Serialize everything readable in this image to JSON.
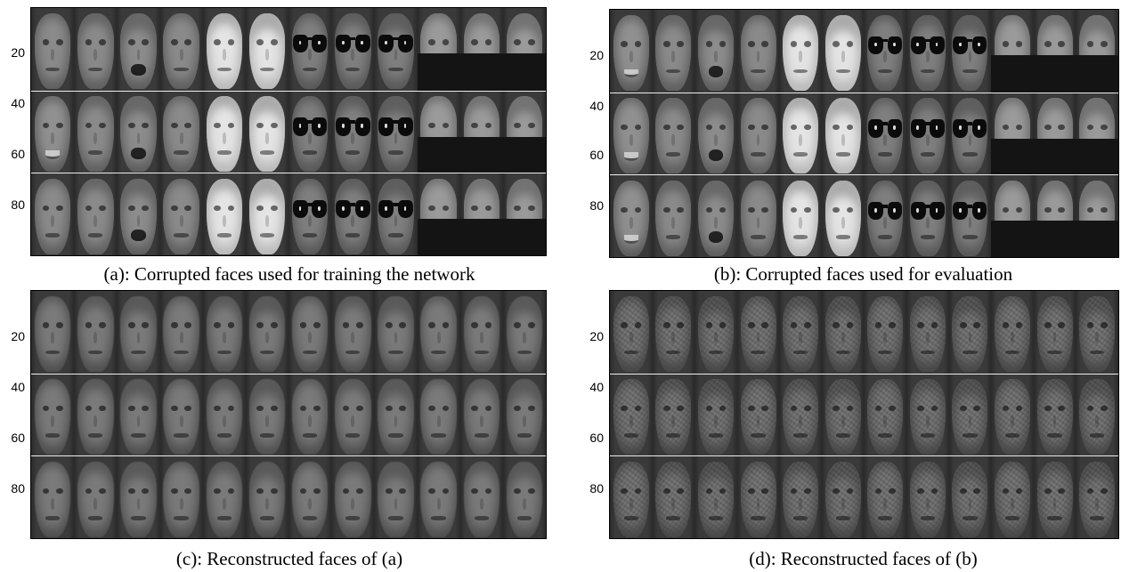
{
  "panels": [
    {
      "id": "a",
      "caption": "(a): Corrupted faces used for training the network",
      "yticks": [
        "20",
        "40",
        "60",
        "80"
      ],
      "rows": [
        {
          "faces": [
            "neutral",
            "neutral",
            "scream",
            "neutral",
            "bright",
            "bright",
            "sunglasses",
            "sunglasses",
            "sunglasses",
            "scarfed",
            "scarfed",
            "scarfed"
          ]
        },
        {
          "faces": [
            "smile",
            "neutral",
            "scream",
            "neutral",
            "bright",
            "bright",
            "sunglasses",
            "sunglasses",
            "sunglasses",
            "scarfed",
            "scarfed",
            "scarfed"
          ]
        },
        {
          "faces": [
            "neutral",
            "neutral",
            "scream",
            "neutral",
            "bright",
            "bright",
            "sunglasses",
            "sunglasses",
            "sunglasses",
            "scarfed",
            "scarfed",
            "scarfed"
          ]
        }
      ]
    },
    {
      "id": "b",
      "caption": "(b): Corrupted faces used for evaluation",
      "yticks": [
        "20",
        "40",
        "60",
        "80"
      ],
      "rows": [
        {
          "faces": [
            "smile",
            "neutral",
            "scream",
            "neutral",
            "bright",
            "bright",
            "sunglasses",
            "sunglasses",
            "sunglasses",
            "scarfed",
            "scarfed",
            "scarfed"
          ]
        },
        {
          "faces": [
            "smile",
            "neutral",
            "scream",
            "neutral",
            "bright",
            "bright",
            "sunglasses",
            "sunglasses",
            "sunglasses",
            "scarfed",
            "scarfed",
            "scarfed"
          ]
        },
        {
          "faces": [
            "smile",
            "neutral",
            "scream",
            "neutral",
            "bright",
            "bright",
            "sunglasses",
            "sunglasses",
            "sunglasses",
            "scarfed",
            "scarfed",
            "scarfed"
          ]
        }
      ]
    },
    {
      "id": "c",
      "caption": "(c): Reconstructed faces of (a)",
      "yticks": [
        "20",
        "40",
        "60",
        "80"
      ],
      "rows": [
        {
          "faces": [
            "recon",
            "recon",
            "recon",
            "recon",
            "recon",
            "recon",
            "recon",
            "recon",
            "recon",
            "recon",
            "recon",
            "recon"
          ]
        },
        {
          "faces": [
            "recon",
            "recon",
            "recon",
            "recon",
            "recon",
            "recon",
            "recon",
            "recon",
            "recon",
            "recon",
            "recon",
            "recon"
          ]
        },
        {
          "faces": [
            "recon",
            "recon",
            "recon",
            "recon",
            "recon",
            "recon",
            "recon",
            "recon",
            "recon",
            "recon",
            "recon",
            "recon"
          ]
        }
      ]
    },
    {
      "id": "d",
      "caption": "(d): Reconstructed faces of (b)",
      "yticks": [
        "20",
        "40",
        "60",
        "80"
      ],
      "rows": [
        {
          "faces": [
            "noisy",
            "noisy",
            "noisy",
            "noisy",
            "noisy",
            "noisy",
            "noisy",
            "noisy",
            "noisy",
            "noisy",
            "noisy",
            "noisy"
          ]
        },
        {
          "faces": [
            "noisy",
            "noisy",
            "noisy",
            "noisy",
            "noisy",
            "noisy",
            "noisy",
            "noisy",
            "noisy",
            "noisy",
            "noisy",
            "noisy"
          ]
        },
        {
          "faces": [
            "noisy",
            "noisy",
            "noisy",
            "noisy",
            "noisy",
            "noisy",
            "noisy",
            "noisy",
            "noisy",
            "noisy",
            "noisy",
            "noisy"
          ]
        }
      ]
    }
  ]
}
